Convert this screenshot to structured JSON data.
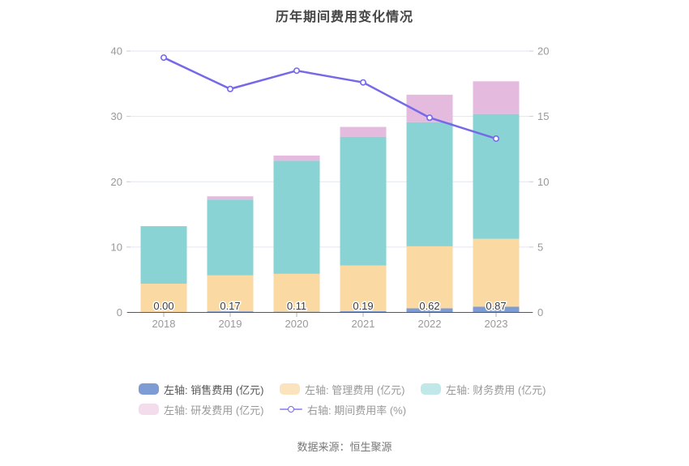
{
  "title": "历年期间费用变化情况",
  "footer": {
    "source": "数据来源：恒生聚源"
  },
  "colors": {
    "bar_sales": "#7d9cd4",
    "bar_admin": "#fbd9a3",
    "bar_finance": "#89d3d4",
    "bar_rd": "#e4badf",
    "line_rate": "#7569e8",
    "grid": "#e3e6f0",
    "axis_line": "#55585e",
    "axis_text": "#999999",
    "value_label": "#3c3c3c"
  },
  "chart_data": {
    "type": "bar",
    "subtype": "stacked bars with overlay line (dual axis)",
    "title": "历年期间费用变化情况",
    "categories": [
      "2018",
      "2019",
      "2020",
      "2021",
      "2022",
      "2023"
    ],
    "series": [
      {
        "name": "左轴: 销售费用 (亿元)",
        "type": "bar",
        "stack": true,
        "axis": "left",
        "color": "#7d9cd4",
        "values": [
          0.0,
          0.17,
          0.11,
          0.19,
          0.62,
          0.87
        ],
        "data_labels": [
          "0.00",
          "0.17",
          "0.11",
          "0.19",
          "0.62",
          "0.87"
        ]
      },
      {
        "name": "左轴: 管理费用 (亿元)",
        "type": "bar",
        "stack": true,
        "axis": "left",
        "color": "#fbd9a3",
        "values": [
          4.4,
          5.5,
          5.8,
          7.0,
          9.5,
          10.4
        ]
      },
      {
        "name": "左轴: 财务费用 (亿元)",
        "type": "bar",
        "stack": true,
        "axis": "left",
        "color": "#89d3d4",
        "values": [
          8.8,
          11.6,
          17.3,
          19.7,
          19.0,
          19.1
        ]
      },
      {
        "name": "左轴: 研发费用 (亿元)",
        "type": "bar",
        "stack": true,
        "axis": "left",
        "color": "#e4badf",
        "values": [
          0.0,
          0.5,
          0.8,
          1.5,
          4.2,
          5.0
        ]
      },
      {
        "name": "右轴: 期间费用率 (%)",
        "type": "line",
        "axis": "right",
        "color": "#7569e8",
        "marker": "hollow-circle",
        "values": [
          19.5,
          17.1,
          18.5,
          17.6,
          14.9,
          13.3
        ]
      }
    ],
    "left_axis": {
      "min": 0,
      "max": 40,
      "ticks": [
        0,
        10,
        20,
        30,
        40
      ]
    },
    "right_axis": {
      "min": 0,
      "max": 20,
      "ticks": [
        0,
        5,
        10,
        15,
        20
      ]
    },
    "grid": true,
    "legend_position": "bottom"
  },
  "legend": {
    "items": [
      {
        "label": "左轴: 销售费用 (亿元)",
        "icon": "rect",
        "swatch": "#7d9cd4",
        "text_color": "#555555"
      },
      {
        "label": "左轴: 管理费用 (亿元)",
        "icon": "rect",
        "swatch": "#fae3bd",
        "text_color": "#999999"
      },
      {
        "label": "左轴: 财务费用 (亿元)",
        "icon": "rect",
        "swatch": "#c0e8e8",
        "text_color": "#999999"
      },
      {
        "label": "左轴: 研发费用 (亿元)",
        "icon": "rect",
        "swatch": "#f3dcec",
        "text_color": "#999999"
      },
      {
        "label": "右轴: 期间费用率 (%)",
        "icon": "line",
        "swatch": "#7569e8",
        "text_color": "#999999"
      }
    ]
  }
}
